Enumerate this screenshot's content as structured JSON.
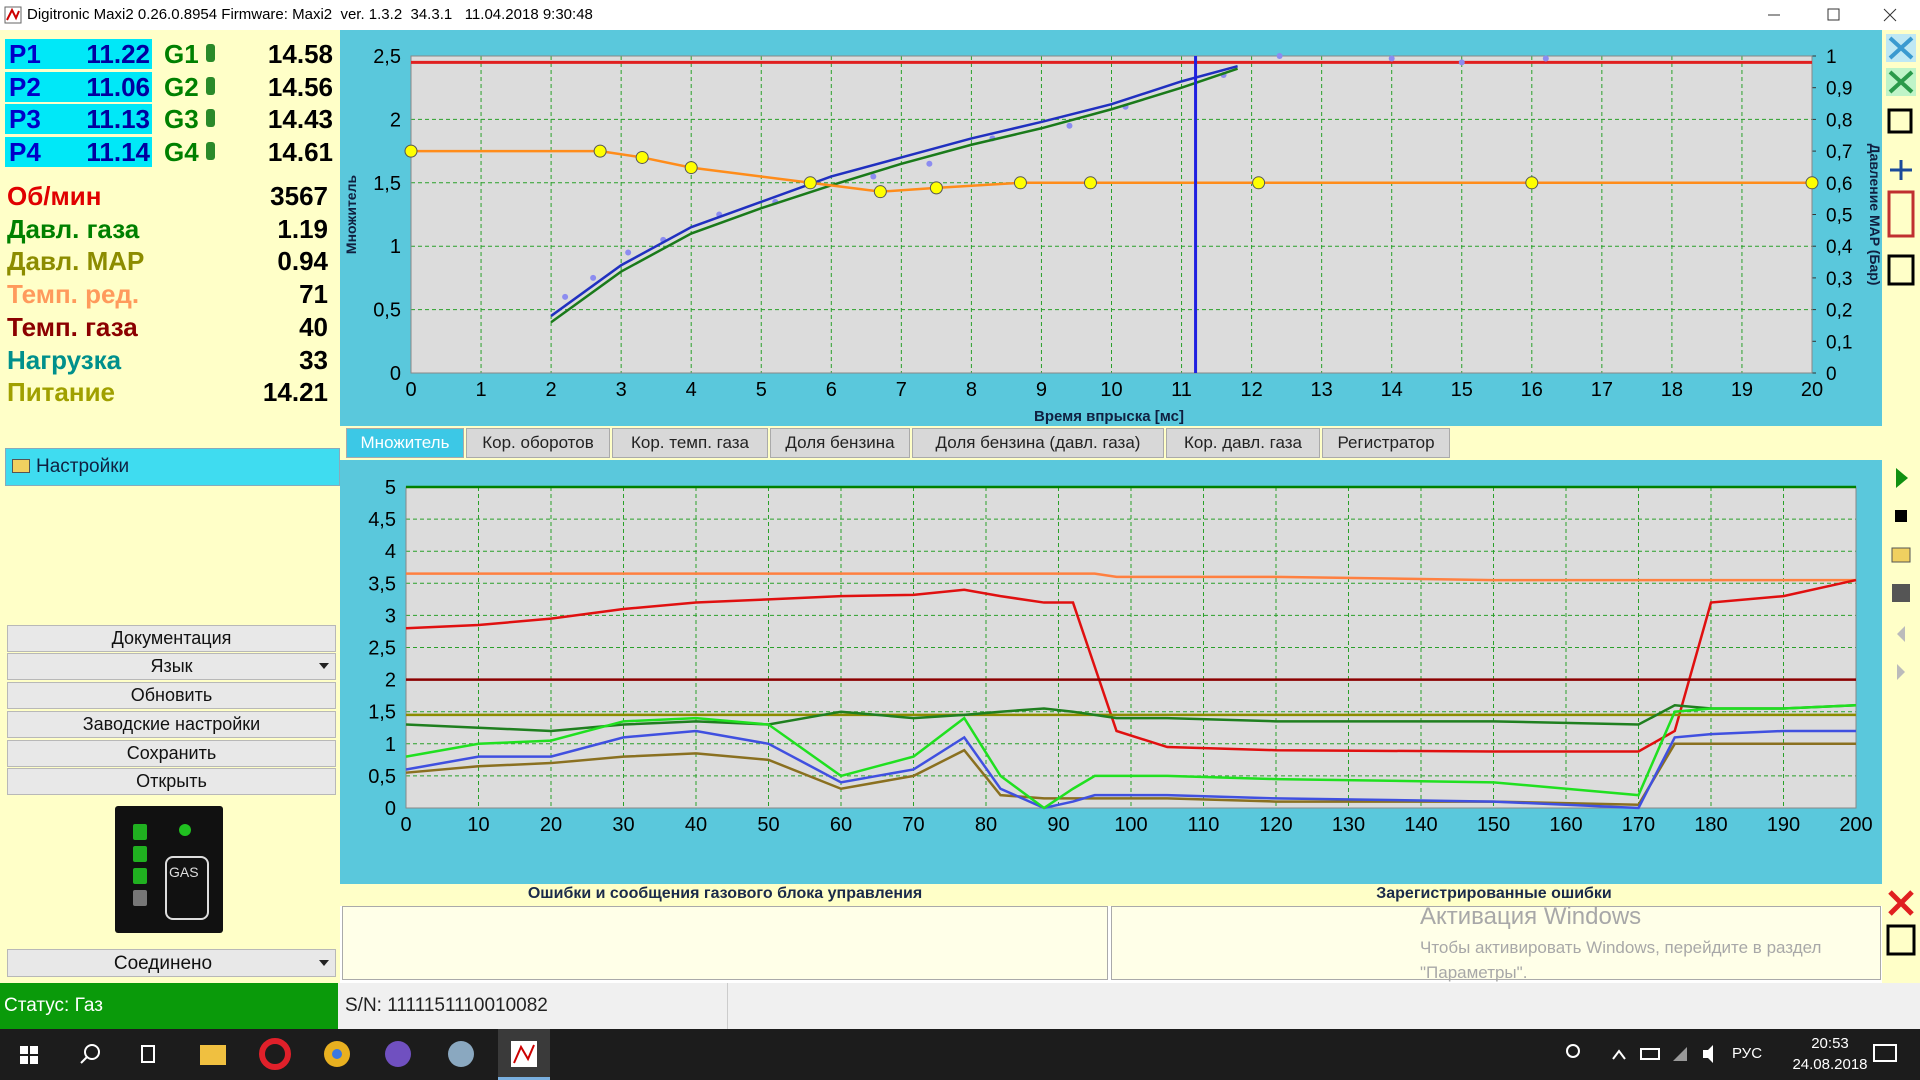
{
  "window": {
    "title": "Digitronic Maxi2 0.26.0.8954 Firmware: Maxi2  ver. 1.3.2  34.3.1   11.04.2018 9:30:48"
  },
  "injectors": [
    {
      "label": "P1",
      "value": 11.22,
      "gas_label": "G1",
      "gas_value": 14.58
    },
    {
      "label": "P2",
      "value": 11.06,
      "gas_label": "G2",
      "gas_value": 14.56
    },
    {
      "label": "P3",
      "value": 11.13,
      "gas_label": "G3",
      "gas_value": 14.43
    },
    {
      "label": "P4",
      "value": 11.14,
      "gas_label": "G4",
      "gas_value": 14.61
    }
  ],
  "readings": [
    {
      "label": "Об/мин",
      "value": 3567,
      "color": "#e00000"
    },
    {
      "label": "Давл. газа",
      "value": 1.19,
      "color": "#008000"
    },
    {
      "label": "Давл. MAP",
      "value": 0.94,
      "color": "#8c8c00"
    },
    {
      "label": "Темп. ред.",
      "value": 71,
      "color": "#ff9a5c"
    },
    {
      "label": "Темп. газа",
      "value": 40,
      "color": "#8b0000"
    },
    {
      "label": "Нагрузка",
      "value": 33,
      "color": "#00908c"
    },
    {
      "label": "Питание",
      "value": 14.21,
      "color": "#a0a000"
    }
  ],
  "settings": "Настройки",
  "buttons": [
    "Документация",
    "Язык",
    "Обновить",
    "Заводские настройки",
    "Сохранить",
    "Открыть"
  ],
  "gas_indicator": "GAS",
  "connection": "Соединено",
  "top_chart": {
    "type": "line",
    "ylabel": "Множитель",
    "y2label": "Давление MAP (Бар)",
    "xlabel": "Время впрыска [мс]",
    "xlim": [
      0,
      20
    ],
    "ylim": [
      0,
      2.5
    ],
    "y2lim": [
      0,
      1
    ],
    "xticks": [
      0,
      1,
      2,
      3,
      4,
      5,
      6,
      7,
      8,
      9,
      10,
      11,
      12,
      13,
      14,
      15,
      16,
      17,
      18,
      19,
      20
    ],
    "yticks": [
      0,
      {
        "value": 0.5,
        "label": "0,5"
      },
      1,
      {
        "value": 1.5,
        "label": "1,5"
      },
      2,
      {
        "value": 2.5,
        "label": "2,5"
      }
    ],
    "y2ticks": [
      0,
      {
        "value": 0.1,
        "label": "0,1"
      },
      {
        "value": 0.2,
        "label": "0,2"
      },
      {
        "value": 0.3,
        "label": "0,3"
      },
      {
        "value": 0.4,
        "label": "0,4"
      },
      {
        "value": 0.5,
        "label": "0,5"
      },
      {
        "value": 0.6,
        "label": "0,6"
      },
      {
        "value": 0.7,
        "label": "0,7"
      },
      {
        "value": 0.8,
        "label": "0,8"
      },
      {
        "value": 0.9,
        "label": "0,9"
      },
      1
    ],
    "grid": true,
    "limit": 2.45,
    "limit_color": "#e02020",
    "cursor_x": 11.2,
    "cursor_color": "#2020e0",
    "series": [
      {
        "type": "scatter",
        "color": "#8c8cf0",
        "x": [
          2.2,
          2.6,
          3.1,
          3.6,
          4.4,
          5.2,
          6.6,
          7.4,
          8.3,
          9.4,
          10.2,
          11.6,
          12.4,
          14.0,
          15.0,
          16.2
        ],
        "values": [
          0.6,
          0.75,
          0.95,
          1.05,
          1.25,
          1.35,
          1.55,
          1.65,
          1.85,
          1.95,
          2.1,
          2.35,
          2.5,
          2.48,
          2.45,
          2.48
        ]
      },
      {
        "type": "line",
        "color": "#1a7a1a",
        "x": [
          2,
          3,
          4,
          5,
          6,
          7,
          8,
          9,
          10,
          11,
          11.8
        ],
        "values": [
          0.4,
          0.8,
          1.1,
          1.3,
          1.48,
          1.65,
          1.8,
          1.93,
          2.08,
          2.25,
          2.4
        ]
      },
      {
        "type": "line",
        "color": "#2030c0",
        "x": [
          2,
          3,
          4,
          5,
          6,
          7,
          8,
          9,
          10,
          11,
          11.8
        ],
        "values": [
          0.45,
          0.85,
          1.15,
          1.35,
          1.55,
          1.7,
          1.85,
          1.98,
          2.12,
          2.3,
          2.42
        ]
      },
      {
        "type": "line",
        "marker": "circle",
        "color": "#ff8c1a",
        "marker_color": "#ffff00",
        "x": [
          0,
          2.7,
          3.3,
          4,
          5.7,
          6.7,
          7.5,
          8.7,
          9.7,
          12.1,
          16,
          20
        ],
        "values": [
          1.75,
          1.75,
          1.7,
          1.62,
          1.5,
          1.43,
          1.46,
          1.5,
          1.5,
          1.5,
          1.5,
          1.5
        ]
      }
    ]
  },
  "tabs": [
    "Множитель",
    "Кор. оборотов",
    "Кор. темп. газа",
    "Доля бензина",
    "Доля бензина (давл. газа)",
    "Кор. давл. газа",
    "Регистратор"
  ],
  "active_tab": 0,
  "bottom_chart": {
    "type": "line",
    "xlim": [
      0,
      200
    ],
    "ylim": [
      0,
      5
    ],
    "xticks": [
      0,
      10,
      20,
      30,
      40,
      50,
      60,
      70,
      80,
      90,
      100,
      110,
      120,
      130,
      140,
      150,
      160,
      170,
      180,
      190,
      200
    ],
    "yticks": [
      0,
      {
        "value": 0.5,
        "label": "0,5"
      },
      1,
      {
        "value": 1.5,
        "label": "1,5"
      },
      2,
      {
        "value": 2.5,
        "label": "2,5"
      },
      3,
      {
        "value": 3.5,
        "label": "3,5"
      },
      4,
      {
        "value": 4.5,
        "label": "4,5"
      },
      5
    ],
    "grid": true,
    "x": [
      0,
      10,
      20,
      30,
      40,
      50,
      60,
      70,
      77,
      82,
      88,
      92,
      95,
      98,
      105,
      120,
      150,
      170,
      175,
      180,
      190,
      200
    ],
    "series": [
      {
        "color": "#008000",
        "values": [
          5,
          5,
          5,
          5,
          5,
          5,
          5,
          5,
          5,
          5,
          5,
          5,
          5,
          5,
          5,
          5,
          5,
          5,
          5,
          5,
          5,
          5
        ]
      },
      {
        "color": "#ff8040",
        "values": [
          3.65,
          3.65,
          3.65,
          3.65,
          3.65,
          3.65,
          3.65,
          3.65,
          3.65,
          3.65,
          3.65,
          3.65,
          3.65,
          3.6,
          3.6,
          3.6,
          3.55,
          3.55,
          3.55,
          3.55,
          3.55,
          3.55
        ]
      },
      {
        "color": "#e01010",
        "values": [
          2.8,
          2.85,
          2.95,
          3.1,
          3.2,
          3.25,
          3.3,
          3.32,
          3.4,
          3.3,
          3.2,
          3.2,
          2.2,
          1.2,
          0.95,
          0.9,
          0.88,
          0.88,
          1.2,
          3.2,
          3.3,
          3.55
        ]
      },
      {
        "color": "#8b0000",
        "values": [
          2,
          2,
          2,
          2,
          2,
          2,
          2,
          2,
          2,
          2,
          2,
          2,
          2,
          2,
          2,
          2,
          2,
          2,
          2,
          2,
          2,
          2
        ]
      },
      {
        "color": "#8c8c00",
        "values": [
          1.45,
          1.45,
          1.45,
          1.45,
          1.45,
          1.45,
          1.45,
          1.45,
          1.45,
          1.45,
          1.45,
          1.45,
          1.45,
          1.45,
          1.45,
          1.45,
          1.45,
          1.45,
          1.45,
          1.45,
          1.45,
          1.45
        ]
      },
      {
        "color": "#1f7f1f",
        "values": [
          1.3,
          1.25,
          1.2,
          1.3,
          1.35,
          1.3,
          1.5,
          1.4,
          1.45,
          1.5,
          1.55,
          1.5,
          1.45,
          1.4,
          1.4,
          1.35,
          1.35,
          1.3,
          1.6,
          1.55,
          1.55,
          1.6
        ]
      },
      {
        "color": "#8a7020",
        "values": [
          0.55,
          0.65,
          0.7,
          0.8,
          0.85,
          0.75,
          0.3,
          0.5,
          0.9,
          0.2,
          0.15,
          0.15,
          0.15,
          0.15,
          0.15,
          0.1,
          0.1,
          0.05,
          1.0,
          1.0,
          1.0,
          1.0
        ]
      },
      {
        "color": "#4050e0",
        "values": [
          0.6,
          0.8,
          0.8,
          1.1,
          1.2,
          1.0,
          0.4,
          0.6,
          1.1,
          0.3,
          0.0,
          0.1,
          0.2,
          0.2,
          0.2,
          0.15,
          0.1,
          0.0,
          1.1,
          1.15,
          1.2,
          1.2
        ]
      },
      {
        "color": "#20e020",
        "values": [
          0.8,
          1.0,
          1.05,
          1.35,
          1.4,
          1.3,
          0.5,
          0.8,
          1.4,
          0.5,
          0.0,
          0.3,
          0.5,
          0.5,
          0.5,
          0.45,
          0.4,
          0.2,
          1.5,
          1.55,
          1.55,
          1.6
        ]
      }
    ]
  },
  "errors": {
    "gas_unit": "Ошибки и сообщения газового блока управления",
    "registered": "Зарегистрированные ошибки"
  },
  "watermark": {
    "title": "Активация Windows",
    "text": "Чтобы активировать Windows, перейдите в раздел \"Параметры\"."
  },
  "status": {
    "mode": "Статус: Газ",
    "serial": "S/N: 1111151110010082"
  },
  "taskbar": {
    "language": "РУС",
    "time": "20:53",
    "date": "24.08.2018"
  }
}
